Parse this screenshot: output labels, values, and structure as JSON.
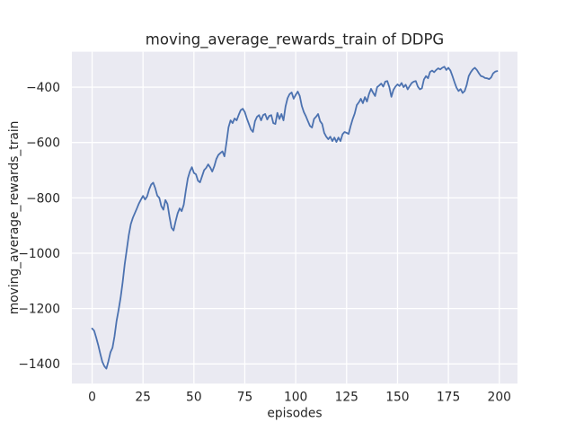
{
  "figure": {
    "background": "#ffffff"
  },
  "chart_data": {
    "type": "line",
    "title": "moving_average_rewards_train of DDPG",
    "xlabel": "episodes",
    "ylabel": "moving_average_rewards_train",
    "grid": true,
    "legend": false,
    "plot_bg_color": "#EAEAF2",
    "grid_color": "#FFFFFF",
    "line_color": "#4C72B0",
    "text_color": "#262626",
    "xlim": [
      -9.95,
      208.95
    ],
    "ylim": [
      -1471,
      -272
    ],
    "x_ticks": [
      0,
      25,
      50,
      75,
      100,
      125,
      150,
      175,
      200
    ],
    "x_tick_labels": [
      "0",
      "25",
      "50",
      "75",
      "100",
      "125",
      "150",
      "175",
      "200"
    ],
    "y_ticks": [
      -400,
      -600,
      -800,
      -1000,
      -1200,
      -1400
    ],
    "y_tick_labels": [
      "−400",
      "−600",
      "−800",
      "−1000",
      "−1200",
      "−1400"
    ],
    "series": [
      {
        "name": "moving_average_rewards_train",
        "x_start": 0,
        "x_step": 1,
        "y": [
          -1272,
          -1280,
          -1305,
          -1332,
          -1363,
          -1392,
          -1408,
          -1417,
          -1390,
          -1358,
          -1342,
          -1300,
          -1245,
          -1205,
          -1160,
          -1105,
          -1040,
          -988,
          -935,
          -895,
          -872,
          -855,
          -838,
          -820,
          -806,
          -793,
          -806,
          -795,
          -770,
          -752,
          -745,
          -765,
          -792,
          -800,
          -830,
          -843,
          -808,
          -822,
          -868,
          -908,
          -918,
          -885,
          -856,
          -838,
          -848,
          -825,
          -775,
          -730,
          -705,
          -689,
          -710,
          -715,
          -738,
          -744,
          -722,
          -700,
          -692,
          -679,
          -690,
          -705,
          -686,
          -660,
          -645,
          -638,
          -632,
          -650,
          -600,
          -545,
          -520,
          -530,
          -513,
          -520,
          -500,
          -483,
          -478,
          -490,
          -513,
          -533,
          -553,
          -562,
          -523,
          -507,
          -501,
          -520,
          -501,
          -497,
          -517,
          -504,
          -501,
          -530,
          -533,
          -493,
          -515,
          -497,
          -520,
          -470,
          -440,
          -425,
          -419,
          -442,
          -428,
          -416,
          -432,
          -468,
          -490,
          -505,
          -523,
          -540,
          -546,
          -515,
          -507,
          -497,
          -523,
          -533,
          -565,
          -579,
          -588,
          -579,
          -595,
          -582,
          -598,
          -582,
          -595,
          -570,
          -562,
          -565,
          -569,
          -540,
          -515,
          -495,
          -465,
          -455,
          -442,
          -458,
          -436,
          -452,
          -425,
          -406,
          -420,
          -432,
          -400,
          -394,
          -387,
          -398,
          -380,
          -378,
          -400,
          -435,
          -410,
          -398,
          -390,
          -396,
          -385,
          -400,
          -391,
          -408,
          -396,
          -385,
          -380,
          -378,
          -398,
          -408,
          -404,
          -372,
          -360,
          -368,
          -345,
          -340,
          -346,
          -338,
          -332,
          -336,
          -330,
          -326,
          -338,
          -330,
          -340,
          -360,
          -382,
          -402,
          -414,
          -407,
          -421,
          -414,
          -392,
          -360,
          -346,
          -336,
          -330,
          -338,
          -350,
          -360,
          -362,
          -367,
          -368,
          -371,
          -365,
          -350,
          -344,
          -342
        ]
      }
    ]
  }
}
